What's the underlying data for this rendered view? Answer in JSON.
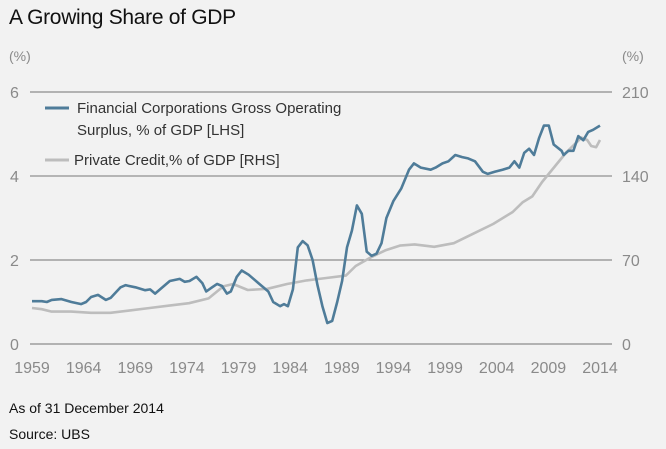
{
  "chart_data": {
    "type": "line",
    "title": "A Growing Share of GDP",
    "left_axis": {
      "unit": "(%)",
      "ticks": [
        0,
        2,
        4,
        6
      ],
      "range": [
        0,
        6
      ]
    },
    "right_axis": {
      "unit": "(%)",
      "ticks": [
        0,
        70,
        140,
        210
      ],
      "range": [
        0,
        210
      ]
    },
    "x_ticks": [
      "1959",
      "1964",
      "1969",
      "1974",
      "1979",
      "1984",
      "1989",
      "1994",
      "1999",
      "2004",
      "2009",
      "2014"
    ],
    "x_range": [
      1959,
      2014
    ],
    "grid": true,
    "legend_position": "top-left",
    "series": [
      {
        "name": "Financial Corporations Gross Operating Surplus, % of GDP [LHS]",
        "legend_lines": [
          "Financial Corporations Gross Operating",
          "Surplus, % of GDP [LHS]"
        ],
        "axis": "left",
        "color": "#4f7c99",
        "points": [
          [
            1959,
            1.02
          ],
          [
            1960,
            1.02
          ],
          [
            1960.5,
            1.0
          ],
          [
            1961,
            1.05
          ],
          [
            1962,
            1.07
          ],
          [
            1963,
            1.0
          ],
          [
            1964,
            0.95
          ],
          [
            1964.5,
            1.0
          ],
          [
            1965,
            1.12
          ],
          [
            1965.7,
            1.17
          ],
          [
            1966.5,
            1.05
          ],
          [
            1967,
            1.1
          ],
          [
            1968,
            1.35
          ],
          [
            1968.5,
            1.4
          ],
          [
            1969.5,
            1.35
          ],
          [
            1970.5,
            1.28
          ],
          [
            1971,
            1.3
          ],
          [
            1971.5,
            1.2
          ],
          [
            1972,
            1.3
          ],
          [
            1973,
            1.5
          ],
          [
            1974,
            1.55
          ],
          [
            1974.5,
            1.48
          ],
          [
            1975,
            1.5
          ],
          [
            1975.7,
            1.6
          ],
          [
            1976.3,
            1.45
          ],
          [
            1976.7,
            1.25
          ],
          [
            1977.3,
            1.35
          ],
          [
            1977.8,
            1.43
          ],
          [
            1978.3,
            1.38
          ],
          [
            1978.8,
            1.2
          ],
          [
            1979.2,
            1.25
          ],
          [
            1979.8,
            1.6
          ],
          [
            1980.3,
            1.75
          ],
          [
            1981,
            1.65
          ],
          [
            1982,
            1.45
          ],
          [
            1983,
            1.25
          ],
          [
            1983.5,
            1.0
          ],
          [
            1984.2,
            0.9
          ],
          [
            1984.6,
            0.95
          ],
          [
            1985,
            0.9
          ],
          [
            1985.5,
            1.3
          ],
          [
            1986,
            2.3
          ],
          [
            1986.5,
            2.45
          ],
          [
            1987,
            2.35
          ],
          [
            1987.5,
            2.0
          ],
          [
            1988,
            1.4
          ],
          [
            1988.5,
            0.9
          ],
          [
            1989,
            0.5
          ],
          [
            1989.5,
            0.55
          ],
          [
            1990,
            1.0
          ],
          [
            1990.5,
            1.5
          ],
          [
            1991,
            2.3
          ],
          [
            1991.5,
            2.7
          ],
          [
            1992,
            3.3
          ],
          [
            1992.5,
            3.1
          ],
          [
            1993,
            2.2
          ],
          [
            1993.5,
            2.1
          ],
          [
            1994,
            2.15
          ],
          [
            1994.5,
            2.4
          ],
          [
            1995,
            3.0
          ],
          [
            1995.7,
            3.4
          ],
          [
            1996.5,
            3.7
          ],
          [
            1997.3,
            4.15
          ],
          [
            1997.8,
            4.3
          ],
          [
            1998.5,
            4.2
          ],
          [
            1999.5,
            4.15
          ],
          [
            2000,
            4.2
          ],
          [
            2000.7,
            4.3
          ],
          [
            2001.3,
            4.35
          ],
          [
            2002,
            4.5
          ],
          [
            2002.7,
            4.45
          ],
          [
            2003.3,
            4.42
          ],
          [
            2004,
            4.35
          ],
          [
            2004.8,
            4.1
          ],
          [
            2005.3,
            4.05
          ],
          [
            2006,
            4.1
          ],
          [
            2006.8,
            4.15
          ],
          [
            2007.5,
            4.2
          ],
          [
            2008,
            4.35
          ],
          [
            2008.5,
            4.2
          ],
          [
            2009,
            4.55
          ],
          [
            2009.5,
            4.65
          ],
          [
            2010,
            4.5
          ],
          [
            2010.5,
            4.9
          ],
          [
            2011,
            5.2
          ],
          [
            2011.5,
            5.2
          ],
          [
            2012,
            4.75
          ],
          [
            2012.8,
            4.6
          ],
          [
            2013,
            4.5
          ],
          [
            2013.5,
            4.6
          ],
          [
            2014,
            4.6
          ],
          [
            2014.5,
            4.95
          ],
          [
            2015,
            4.85
          ],
          [
            2015.5,
            5.05
          ],
          [
            2016,
            5.1
          ],
          [
            2016.7,
            5.2
          ]
        ]
      },
      {
        "name": "Private Credit, % of GDP [RHS]",
        "legend_lines": [
          "Private Credit,% of GDP [RHS]"
        ],
        "axis": "right",
        "color": "#bdbdbd",
        "points": [
          [
            1959,
            30
          ],
          [
            1960,
            29
          ],
          [
            1961,
            27
          ],
          [
            1963,
            27
          ],
          [
            1965,
            26
          ],
          [
            1967,
            26
          ],
          [
            1969,
            28
          ],
          [
            1971,
            30
          ],
          [
            1973,
            32
          ],
          [
            1975,
            34
          ],
          [
            1977,
            38
          ],
          [
            1978.5,
            48
          ],
          [
            1979.5,
            50
          ],
          [
            1981,
            45
          ],
          [
            1983,
            46
          ],
          [
            1985,
            50
          ],
          [
            1987,
            53
          ],
          [
            1989,
            55
          ],
          [
            1991,
            57
          ],
          [
            1992,
            65
          ],
          [
            1993.5,
            72
          ],
          [
            1995,
            78
          ],
          [
            1996.5,
            82
          ],
          [
            1998,
            83
          ],
          [
            2000,
            81
          ],
          [
            2002,
            84
          ],
          [
            2004,
            92
          ],
          [
            2006,
            100
          ],
          [
            2008,
            110
          ],
          [
            2009,
            118
          ],
          [
            2010,
            123
          ],
          [
            2011,
            135
          ],
          [
            2012.5,
            150
          ],
          [
            2013.5,
            160
          ],
          [
            2014.5,
            168
          ],
          [
            2015,
            172
          ],
          [
            2015.6,
            170
          ],
          [
            2016,
            165
          ],
          [
            2016.5,
            164
          ],
          [
            2016.9,
            170
          ]
        ]
      }
    ]
  },
  "footnotes": {
    "as_of": "As of 31 December 2014",
    "source": "Source: UBS"
  }
}
